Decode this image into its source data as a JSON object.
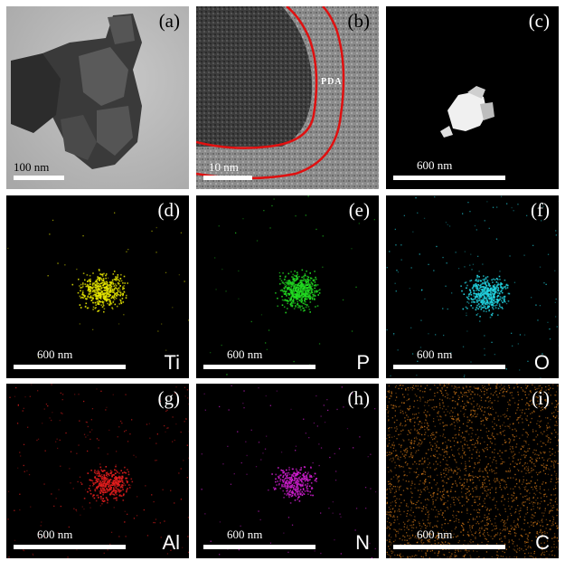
{
  "panels": {
    "a": {
      "label": "(a)",
      "scale": "100 nm"
    },
    "b": {
      "label": "(b)",
      "scale": "10 nm",
      "annotation": "PDA"
    },
    "c": {
      "label": "(c)",
      "scale": "600 nm"
    },
    "d": {
      "label": "(d)",
      "scale": "600 nm",
      "element": "Ti",
      "color": "#e6e600"
    },
    "e": {
      "label": "(e)",
      "scale": "600 nm",
      "element": "P",
      "color": "#22dd22"
    },
    "f": {
      "label": "(f)",
      "scale": "600 nm",
      "element": "O",
      "color": "#22d3e0"
    },
    "g": {
      "label": "(g)",
      "scale": "600 nm",
      "element": "Al",
      "color": "#e61e1e"
    },
    "h": {
      "label": "(h)",
      "scale": "600 nm",
      "element": "N",
      "color": "#d21ed2"
    },
    "i": {
      "label": "(i)",
      "scale": "600 nm",
      "element": "C",
      "color": "#d27818"
    }
  }
}
